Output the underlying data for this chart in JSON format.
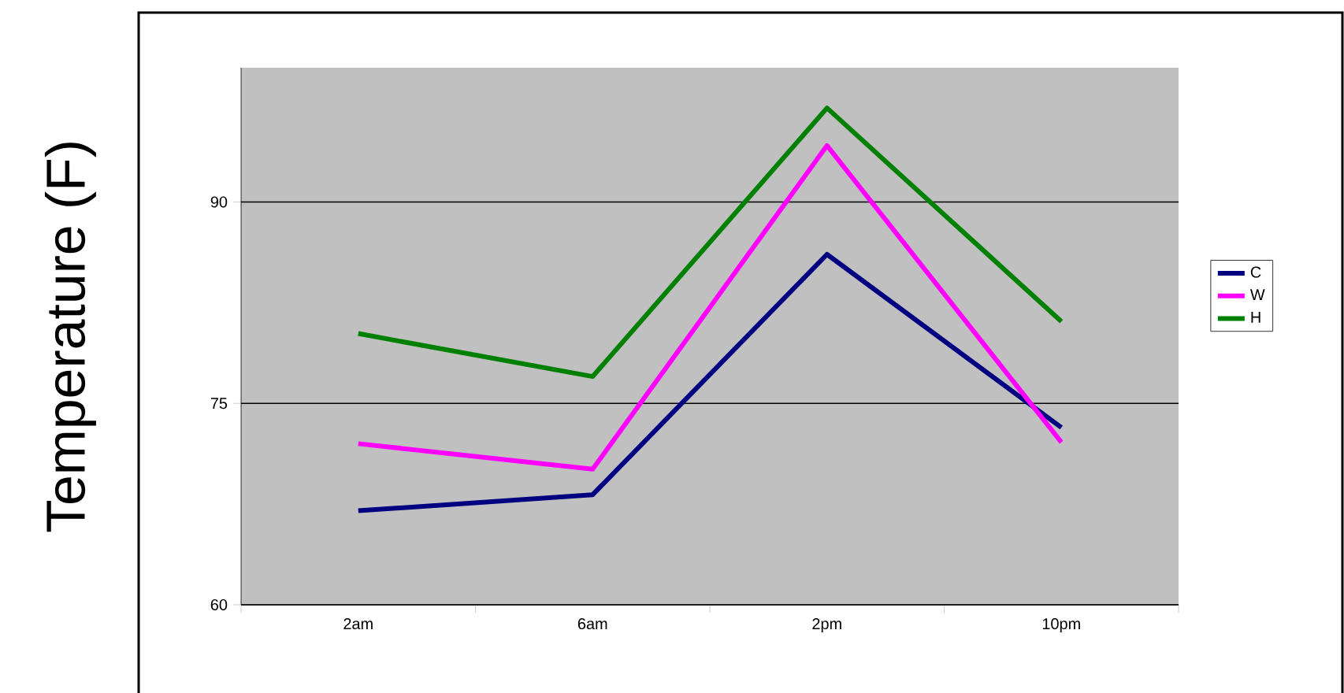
{
  "chart_data": {
    "type": "line",
    "ylabel": "Temperature (F)",
    "categories": [
      "2am",
      "6am",
      "2pm",
      "10pm"
    ],
    "series": [
      {
        "name": "C",
        "color": "#000080",
        "values": [
          67.0,
          68.2,
          86.1,
          73.2
        ]
      },
      {
        "name": "W",
        "color": "#ff00ff",
        "values": [
          72.0,
          70.1,
          94.2,
          72.1
        ]
      },
      {
        "name": "H",
        "color": "#008000",
        "values": [
          80.2,
          77.0,
          97.0,
          81.1
        ]
      }
    ],
    "ylim": [
      60,
      100
    ],
    "yticks": [
      60,
      75,
      90
    ],
    "grid": "y",
    "legend": "right",
    "marker": "none",
    "line_style": "solid"
  }
}
